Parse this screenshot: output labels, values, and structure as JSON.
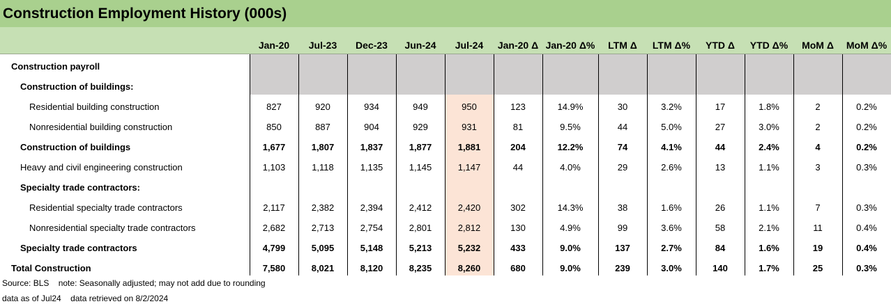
{
  "title": "Construction Employment History (000s)",
  "columns": [
    "Jan-20",
    "Jul-23",
    "Dec-23",
    "Jun-24",
    "Jul-24",
    "Jan-20 Δ",
    "Jan-20 Δ%",
    "LTM Δ",
    "LTM Δ%",
    "YTD Δ",
    "YTD Δ%",
    "MoM Δ",
    "MoM Δ%"
  ],
  "highlight_color": "#fce4d6",
  "rows": [
    {
      "label": "Construction payroll",
      "level": 0,
      "bold": true,
      "values": []
    },
    {
      "label": "Construction of buildings:",
      "level": 1,
      "bold": true,
      "values": []
    },
    {
      "label": "Residential building construction",
      "level": 2,
      "bold": false,
      "values": [
        "827",
        "920",
        "934",
        "949",
        "950",
        "123",
        "14.9%",
        "30",
        "3.2%",
        "17",
        "1.8%",
        "2",
        "0.2%"
      ]
    },
    {
      "label": "Nonresidential building construction",
      "level": 2,
      "bold": false,
      "values": [
        "850",
        "887",
        "904",
        "929",
        "931",
        "81",
        "9.5%",
        "44",
        "5.0%",
        "27",
        "3.0%",
        "2",
        "0.2%"
      ]
    },
    {
      "label": "Construction of buildings",
      "level": 1,
      "bold": true,
      "values": [
        "1,677",
        "1,807",
        "1,837",
        "1,877",
        "1,881",
        "204",
        "12.2%",
        "74",
        "4.1%",
        "44",
        "2.4%",
        "4",
        "0.2%"
      ]
    },
    {
      "label": "Heavy and civil engineering construction",
      "level": 1,
      "bold": false,
      "values": [
        "1,103",
        "1,118",
        "1,135",
        "1,145",
        "1,147",
        "44",
        "4.0%",
        "29",
        "2.6%",
        "13",
        "1.1%",
        "3",
        "0.3%"
      ]
    },
    {
      "label": "Specialty trade contractors:",
      "level": 1,
      "bold": true,
      "values": []
    },
    {
      "label": "Residential specialty trade contractors",
      "level": 2,
      "bold": false,
      "values": [
        "2,117",
        "2,382",
        "2,394",
        "2,412",
        "2,420",
        "302",
        "14.3%",
        "38",
        "1.6%",
        "26",
        "1.1%",
        "7",
        "0.3%"
      ]
    },
    {
      "label": "Nonresidential specialty trade contractors",
      "level": 2,
      "bold": false,
      "values": [
        "2,682",
        "2,713",
        "2,754",
        "2,801",
        "2,812",
        "130",
        "4.9%",
        "99",
        "3.6%",
        "58",
        "2.1%",
        "11",
        "0.4%"
      ]
    },
    {
      "label": "Specialty trade contractors",
      "level": 1,
      "bold": true,
      "values": [
        "4,799",
        "5,095",
        "5,148",
        "5,213",
        "5,232",
        "433",
        "9.0%",
        "137",
        "2.7%",
        "84",
        "1.6%",
        "19",
        "0.4%"
      ]
    },
    {
      "label": "Total Construction",
      "level": 0,
      "bold": true,
      "values": [
        "7,580",
        "8,021",
        "8,120",
        "8,235",
        "8,260",
        "680",
        "9.0%",
        "239",
        "3.0%",
        "140",
        "1.7%",
        "25",
        "0.3%"
      ]
    }
  ],
  "footer": {
    "line1": "Source: BLS    note: Seasonally adjusted; may not add due to rounding",
    "line2": "data as of Jul24    data retrieved on 8/2/2024"
  }
}
